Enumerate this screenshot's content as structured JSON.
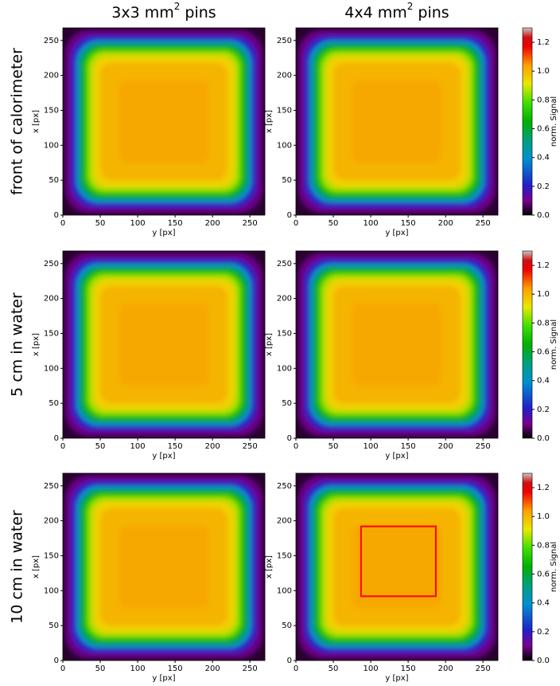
{
  "column_titles": [
    [
      "3x3 mm",
      "2",
      " pins"
    ],
    [
      "4x4 mm",
      "2",
      " pins"
    ]
  ],
  "row_labels": [
    "front of calorimeter",
    "5 cm in water",
    "10 cm in water"
  ],
  "chart_data": [
    {
      "type": "heatmap",
      "xlabel": "y [px]",
      "ylabel": "x [px]",
      "xlim": [
        0,
        270
      ],
      "ylim": [
        0,
        268
      ],
      "xticks": [
        0,
        50,
        100,
        150,
        200,
        250
      ],
      "yticks": [
        0,
        50,
        100,
        150,
        200,
        250
      ]
    },
    {
      "type": "heatmap",
      "xlabel": "y [px]",
      "ylabel": "x [px]",
      "xlim": [
        0,
        270
      ],
      "ylim": [
        0,
        268
      ],
      "xticks": [
        0,
        50,
        100,
        150,
        200,
        250
      ],
      "yticks": [
        0,
        50,
        100,
        150,
        200,
        250
      ],
      "colorbar": {
        "label": "norm. Signal",
        "lim": [
          0,
          1.3
        ],
        "ticks": [
          {
            "value": 0,
            "label": "0.0"
          },
          {
            "value": 0.2,
            "label": "0.2"
          },
          {
            "value": 0.4,
            "label": "0.4"
          },
          {
            "value": 0.6,
            "label": "0.6"
          },
          {
            "value": 0.8,
            "label": "0.8"
          },
          {
            "value": 1,
            "label": "1.0"
          },
          {
            "value": 1.2,
            "label": "1.2"
          }
        ]
      }
    },
    {
      "type": "heatmap",
      "xlabel": "y [px]",
      "ylabel": "x [px]",
      "xlim": [
        0,
        270
      ],
      "ylim": [
        0,
        268
      ],
      "xticks": [
        0,
        50,
        100,
        150,
        200,
        250
      ],
      "yticks": [
        0,
        50,
        100,
        150,
        200,
        250
      ]
    },
    {
      "type": "heatmap",
      "xlabel": "y [px]",
      "ylabel": "x [px]",
      "xlim": [
        0,
        270
      ],
      "ylim": [
        0,
        268
      ],
      "xticks": [
        0,
        50,
        100,
        150,
        200,
        250
      ],
      "yticks": [
        0,
        50,
        100,
        150,
        200,
        250
      ],
      "colorbar": {
        "label": "norm. Signal",
        "lim": [
          0,
          1.3
        ],
        "ticks": [
          {
            "value": 0,
            "label": "0.0"
          },
          {
            "value": 0.2,
            "label": "0.2"
          },
          {
            "value": 0.4,
            "label": "0.4"
          },
          {
            "value": 0.6,
            "label": "0.6"
          },
          {
            "value": 0.8,
            "label": "0.8"
          },
          {
            "value": 1,
            "label": "1.0"
          },
          {
            "value": 1.2,
            "label": "1.2"
          }
        ]
      }
    },
    {
      "type": "heatmap",
      "xlabel": "y [px]",
      "ylabel": "x [px]",
      "xlim": [
        0,
        270
      ],
      "ylim": [
        0,
        268
      ],
      "xticks": [
        0,
        50,
        100,
        150,
        200,
        250
      ],
      "yticks": [
        0,
        50,
        100,
        150,
        200,
        250
      ]
    },
    {
      "type": "heatmap",
      "xlabel": "y [px]",
      "ylabel": "x [px]",
      "xlim": [
        0,
        270
      ],
      "ylim": [
        0,
        268
      ],
      "xticks": [
        0,
        50,
        100,
        150,
        200,
        250
      ],
      "yticks": [
        0,
        50,
        100,
        150,
        200,
        250
      ],
      "colorbar": {
        "label": "norm. Signal",
        "lim": [
          0,
          1.3
        ],
        "ticks": [
          {
            "value": 0,
            "label": "0.0"
          },
          {
            "value": 0.2,
            "label": "0.2"
          },
          {
            "value": 0.4,
            "label": "0.4"
          },
          {
            "value": 0.6,
            "label": "0.6"
          },
          {
            "value": 0.8,
            "label": "0.8"
          },
          {
            "value": 1,
            "label": "1.0"
          },
          {
            "value": 1.2,
            "label": "1.2"
          }
        ]
      },
      "highlight_box": {
        "xlim": [
          87,
          187
        ],
        "ylim": [
          92,
          192
        ],
        "color": "#ff0000"
      }
    }
  ]
}
